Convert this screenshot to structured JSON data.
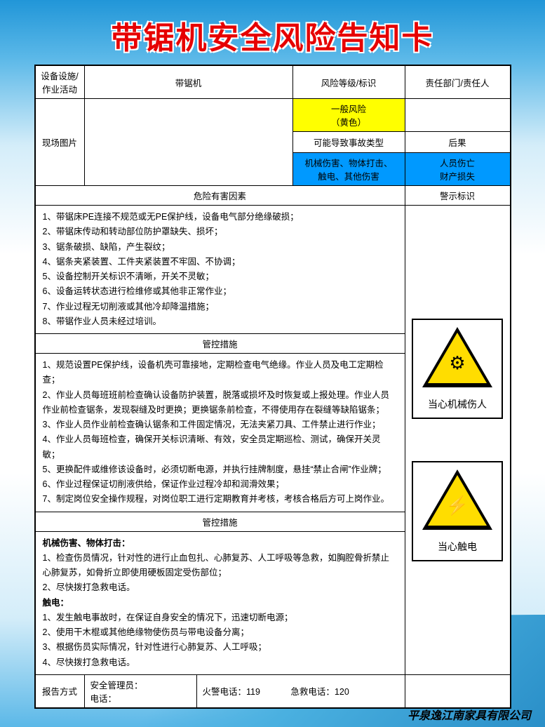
{
  "title": "带锯机安全风险告知卡",
  "header": {
    "col1": "设备设施/作业活动",
    "col2": "带锯机",
    "col3": "风险等级/标识",
    "col4": "责任部门/责任人"
  },
  "row2": {
    "photo_label": "现场图片",
    "risk_level": "一般风险\n（黄色）",
    "accident_type_label": "可能导致事故类型",
    "consequence_label": "后果",
    "accident_types": "机械伤害、物体打击、\n触电、其他伤害",
    "consequences": "人员伤亡\n财产损失"
  },
  "sections": {
    "hazard_header": "危险有害因素",
    "warning_header": "警示标识",
    "hazards": [
      "1、带锯床PE连接不规范或无PE保护线，设备电气部分绝缘破损；",
      "2、带锯床传动和转动部位防护罩缺失、损坏；",
      "3、锯条破损、缺陷，产生裂纹；",
      "4、锯条夹紧装置、工件夹紧装置不牢固、不协调；",
      "5、设备控制开关标识不清晰，开关不灵敏；",
      "6、设备运转状态进行检维修或其他非正常作业；",
      "7、作业过程无切削液或其他冷却降温措施；",
      "8、带锯作业人员未经过培训。"
    ],
    "control_header": "管控措施",
    "controls": [
      "1、规范设置PE保护线，设备机壳可靠接地，定期检查电气绝缘。作业人员及电工定期检查；",
      "2、作业人员每班班前检查确认设备防护装置，脱落或损坏及时恢复或上报处理。作业人员作业前检查锯条，发现裂缝及时更换；更换锯条前检查，不得使用存在裂缝等缺陷锯条；",
      "3、作业人员作业前检查确认锯条和工件固定情况，无法夹紧刀具、工件禁止进行作业；",
      "4、作业人员每班检查，确保开关标识清晰、有效，安全员定期巡检、测试，确保开关灵敏；",
      "5、更换配件或维修该设备时，必须切断电源，并执行挂牌制度，悬挂“禁止合闸”作业牌；",
      "6、作业过程保证切削液供给，保证作业过程冷却和润滑效果；",
      "7、制定岗位安全操作规程，对岗位职工进行定期教育并考核，考核合格后方可上岗作业。"
    ],
    "emergency_header": "管控措施",
    "emergency_title1": "机械伤害、物体打击：",
    "emergency1": [
      "1、检查伤员情况，针对性的进行止血包扎、心肺复苏、人工呼吸等急救，如胸腔骨折禁止心肺复苏，如骨折立即使用硬板固定受伤部位；",
      "2、尽快拨打急救电话。"
    ],
    "emergency_title2": "触电：",
    "emergency2": [
      "1、发生触电事故时，在保证自身安全的情况下，迅速切断电源；",
      "2、使用干木棍或其他绝缘物使伤员与带电设备分离；",
      "3、根据伤员实际情况，针对性进行心肺复苏、人工呼吸；",
      "4、尽快拨打急救电话。"
    ]
  },
  "signs": {
    "sign1_label": "当心机械伤人",
    "sign1_icon": "⚙",
    "sign2_label": "当心触电",
    "sign2_icon": "⚡"
  },
  "footer": {
    "report_label": "报告方式",
    "manager": "安全管理员：",
    "phone": "电话：",
    "fire": "火警电话：119",
    "emergency": "急救电话：120"
  },
  "company": "平泉逸江南家具有限公司",
  "colors": {
    "title_red": "#e60000",
    "yellow": "#ffff00",
    "blue": "#0099ff",
    "sign_yellow": "#ffdd00"
  }
}
